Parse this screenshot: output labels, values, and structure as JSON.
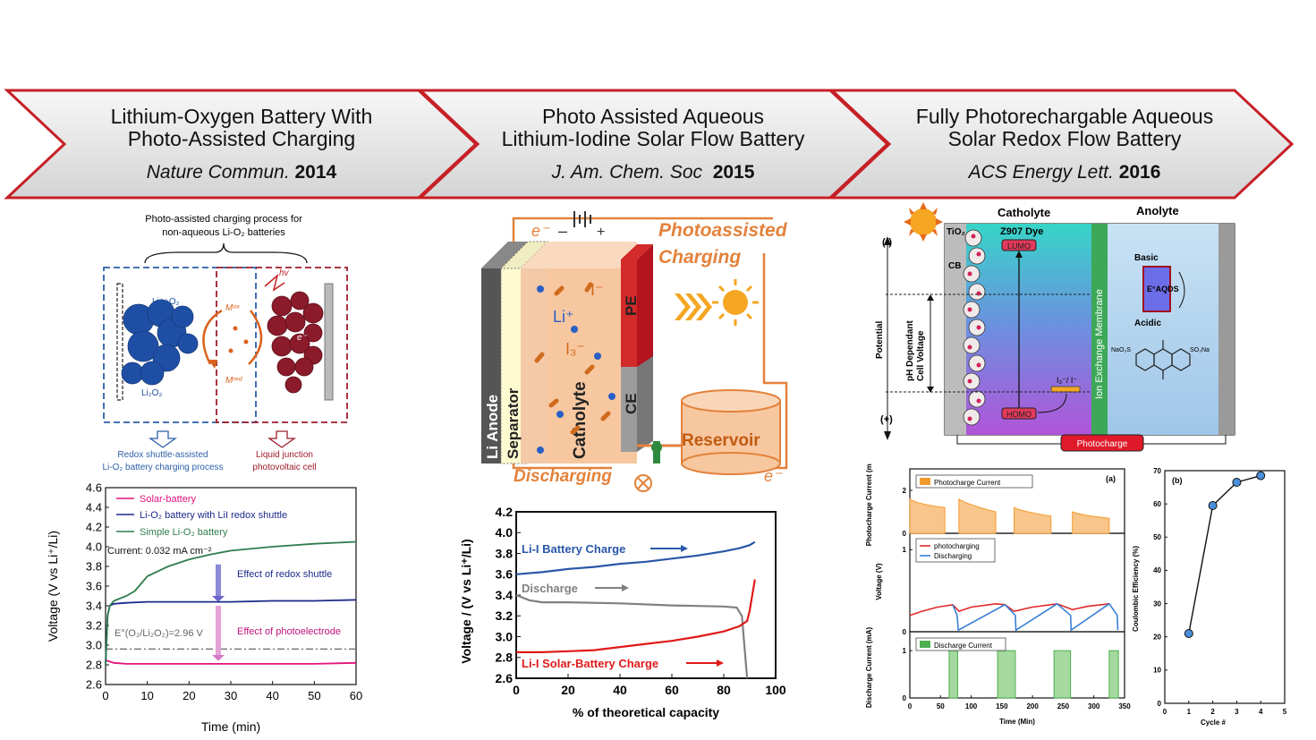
{
  "banner": [
    {
      "title_l1": "Lithium-Oxygen Battery With",
      "title_l2": "Photo-Assisted Charging",
      "journal": "Nature Commun.",
      "year": "2014"
    },
    {
      "title_l1": "Photo Assisted Aqueous",
      "title_l2": "Lithium-Iodine Solar Flow Battery",
      "journal": "J. Am. Chem. Soc",
      "year": "2015"
    },
    {
      "title_l1": "Fully Photorechargable Aqueous",
      "title_l2": "Solar Redox Flow Battery",
      "journal": "ACS Energy Lett.",
      "year": "2016"
    }
  ],
  "panel1_schematic": {
    "title_l1": "Photo-assisted charging process for",
    "title_l2": "non-aqueous Li-O₂ batteries",
    "reactant": "Li⁺+O₂",
    "product": "Li₂O₂",
    "m_ox": "Mᵒˣ",
    "m_red": "Mʳᵉᵈ",
    "hv": "hv",
    "electron": "e⁻",
    "left_caption_l1": "Redox shuttle-assisted",
    "left_caption_l2": "Li-O₂ battery charging process",
    "right_caption_l1": "Liquid junction",
    "right_caption_l2": "photovoltaic cell"
  },
  "panel2_schematic": {
    "electron_top": "e⁻",
    "minus": "–",
    "plus": "+",
    "photo_l1": "Photoassisted",
    "photo_l2": "Charging",
    "li_ion": "Li⁺",
    "iodide": "I⁻",
    "triiodide": "I₃⁻",
    "pe": "PE",
    "ce": "CE",
    "anode": "Li Anode",
    "separator": "Separator",
    "catholyte": "Catholyte",
    "reservoir": "Reservoir",
    "discharging": "Discharging",
    "electron_bottom": "e⁻"
  },
  "panel3_schematic": {
    "catholyte": "Catholyte",
    "anolyte": "Anolyte",
    "tio2": "TiO₂",
    "cb": "CB",
    "dye": "Z907 Dye",
    "lumo": "LUMO",
    "homo": "HOMO",
    "basic": "Basic",
    "acidic": "Acidic",
    "eaqds": "E°AQDS",
    "redox": "I₃⁻/ I⁻",
    "membrane": "Ion Exchange Membrane",
    "potential": "Potential",
    "ph_l1": "pH Dependant",
    "ph_l2": "Cell Voltage",
    "minus": "(-)",
    "plus": "(+)",
    "naso3": "NaO₃S",
    "so3na": "SO₃Na",
    "photocharge": "Photocharge"
  },
  "chart_data": [
    {
      "type": "line",
      "xlabel": "Time (min)",
      "ylabel": "Voltage (V vs Li⁺/Li)",
      "xlim": [
        0,
        60
      ],
      "ylim": [
        2.6,
        4.6
      ],
      "xticks": [
        0,
        10,
        20,
        30,
        40,
        50,
        60
      ],
      "yticks": [
        2.6,
        2.8,
        3.0,
        3.2,
        3.4,
        3.6,
        3.8,
        4.0,
        4.2,
        4.4,
        4.6
      ],
      "series": [
        {
          "name": "Solar-battery",
          "color": "#e5127d",
          "x": [
            0,
            0.5,
            2,
            5,
            10,
            20,
            30,
            40,
            50,
            60
          ],
          "y": [
            2.85,
            2.84,
            2.82,
            2.81,
            2.81,
            2.81,
            2.81,
            2.81,
            2.81,
            2.82
          ]
        },
        {
          "name": "Li-O₂ battery with LiI redox shuttle",
          "color": "#1c2a8a",
          "x": [
            0,
            0.5,
            1,
            2,
            5,
            10,
            20,
            30,
            40,
            50,
            60
          ],
          "y": [
            2.8,
            3.3,
            3.4,
            3.42,
            3.43,
            3.44,
            3.44,
            3.44,
            3.45,
            3.45,
            3.46
          ]
        },
        {
          "name": "Simple Li-O₂ battery",
          "color": "#2f7d4f",
          "x": [
            0,
            0.5,
            1,
            2,
            5,
            7,
            10,
            15,
            20,
            25,
            30,
            40,
            50,
            60
          ],
          "y": [
            2.8,
            3.3,
            3.4,
            3.45,
            3.5,
            3.55,
            3.7,
            3.8,
            3.87,
            3.92,
            3.96,
            4.0,
            4.03,
            4.05
          ]
        }
      ],
      "reference": {
        "label": "E°(O₂/Li₂O₂)=2.96 V",
        "y": 2.96
      },
      "annotations": [
        "Current: 0.032 mA cm⁻²",
        "Effect of redox shuttle",
        "Effect of photoelectrode"
      ]
    },
    {
      "type": "line",
      "xlabel": "% of theoretical capacity",
      "ylabel": "Voltage / (V vs Li⁺/Li)",
      "xlim": [
        0,
        100
      ],
      "ylim": [
        2.6,
        4.2
      ],
      "xticks": [
        0,
        20,
        40,
        60,
        80,
        100
      ],
      "yticks": [
        2.6,
        2.8,
        3.0,
        3.2,
        3.4,
        3.6,
        3.8,
        4.0,
        4.2
      ],
      "series": [
        {
          "name": "Li-I Battery Charge",
          "color": "#2b57a8",
          "x": [
            0,
            10,
            20,
            30,
            40,
            50,
            60,
            70,
            80,
            86,
            90,
            92
          ],
          "y": [
            3.6,
            3.62,
            3.65,
            3.67,
            3.7,
            3.72,
            3.75,
            3.78,
            3.82,
            3.85,
            3.88,
            3.91
          ]
        },
        {
          "name": "Discharge",
          "color": "#808080",
          "x": [
            0,
            5,
            10,
            20,
            40,
            60,
            80,
            85,
            87,
            88,
            89
          ],
          "y": [
            3.4,
            3.35,
            3.33,
            3.33,
            3.32,
            3.3,
            3.29,
            3.28,
            3.2,
            2.9,
            2.6
          ]
        },
        {
          "name": "Li-I Solar-Battery Charge",
          "color": "#e01a1a",
          "x": [
            0,
            10,
            20,
            30,
            40,
            50,
            60,
            70,
            80,
            86,
            89,
            90,
            91,
            92
          ],
          "y": [
            2.85,
            2.85,
            2.86,
            2.87,
            2.9,
            2.93,
            2.96,
            3.0,
            3.05,
            3.1,
            3.15,
            3.25,
            3.4,
            3.55
          ]
        }
      ]
    },
    {
      "type": "line",
      "label": "(a)",
      "xlabel": "Time (Min)",
      "xlim": [
        0,
        350
      ],
      "xticks": [
        0,
        50,
        100,
        150,
        200,
        250,
        300,
        350
      ],
      "subplots": [
        {
          "ylabel": "Photocharge Current (mA)",
          "yticks": [
            0,
            2
          ],
          "ylim": [
            0,
            3
          ],
          "series": [
            {
              "name": "Photocharge Current",
              "color": "#f29a2e",
              "segments": [
                {
                  "x": [
                    0,
                    57
                  ],
                  "y": [
                    1.6,
                    1.2
                  ]
                },
                {
                  "x": [
                    80,
                    140
                  ],
                  "y": [
                    1.6,
                    1.0
                  ]
                },
                {
                  "x": [
                    170,
                    230
                  ],
                  "y": [
                    1.2,
                    0.8
                  ]
                },
                {
                  "x": [
                    265,
                    325
                  ],
                  "y": [
                    1.0,
                    0.7
                  ]
                }
              ]
            }
          ]
        },
        {
          "ylabel": "Voltage (V)",
          "yticks": [
            0,
            1
          ],
          "ylim": [
            0,
            1.2
          ],
          "series": [
            {
              "name": "photocharging",
              "color": "#e02a2a",
              "x": [
                0,
                20,
                45,
                70,
                80,
                100,
                140,
                155,
                170,
                200,
                240,
                265,
                290,
                325
              ],
              "y": [
                0.2,
                0.25,
                0.3,
                0.33,
                0.25,
                0.3,
                0.34,
                0.33,
                0.25,
                0.3,
                0.34,
                0.27,
                0.31,
                0.34
              ]
            },
            {
              "name": "Discharging",
              "color": "#3a7fd5",
              "x": [
                70,
                77,
                79,
                155,
                172,
                173,
                240,
                262,
                263,
                325,
                338,
                339
              ],
              "y": [
                0.33,
                0.2,
                0.02,
                0.33,
                0.2,
                0.02,
                0.34,
                0.2,
                0.02,
                0.34,
                0.2,
                0.02
              ]
            }
          ]
        },
        {
          "ylabel": "Discharge Current (mA)",
          "yticks": [
            0,
            1
          ],
          "ylim": [
            0,
            1.4
          ],
          "series": [
            {
              "name": "Discharge Current",
              "color": "#4caf50",
              "segments": [
                [
                  64,
                  78
                ],
                [
                  143,
                  172
                ],
                [
                  235,
                  262
                ],
                [
                  325,
                  340
                ]
              ],
              "value": 1.0
            }
          ]
        }
      ]
    },
    {
      "type": "scatter",
      "label": "(b)",
      "xlabel": "Cycle #",
      "ylabel": "Coulombic Efficiency (%)",
      "xlim": [
        0,
        5
      ],
      "ylim": [
        0,
        70
      ],
      "xticks": [
        0,
        1,
        2,
        3,
        4,
        5
      ],
      "yticks": [
        0,
        10,
        20,
        30,
        40,
        50,
        60,
        70
      ],
      "x": [
        1,
        2,
        3,
        4
      ],
      "y": [
        21,
        59.5,
        66.5,
        68.5
      ]
    }
  ]
}
